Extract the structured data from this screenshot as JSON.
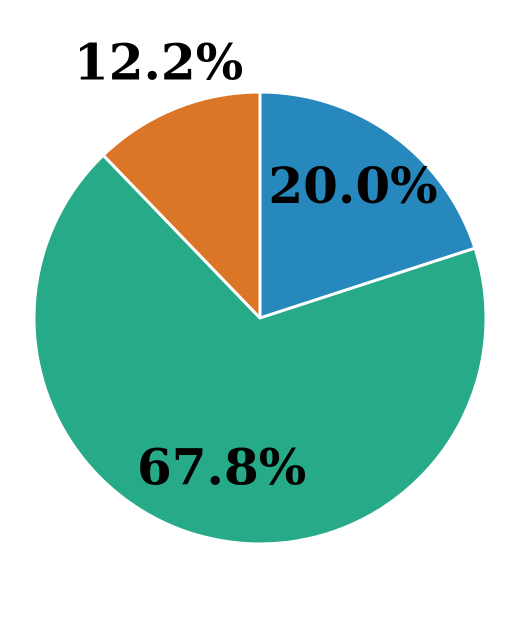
{
  "chart_data": {
    "type": "pie",
    "values": [
      20.0,
      67.8,
      12.2
    ],
    "value_labels": [
      "20.0%",
      "67.8%",
      "12.2%"
    ],
    "colors": [
      "#2788bd",
      "#27aa88",
      "#db7628"
    ]
  }
}
